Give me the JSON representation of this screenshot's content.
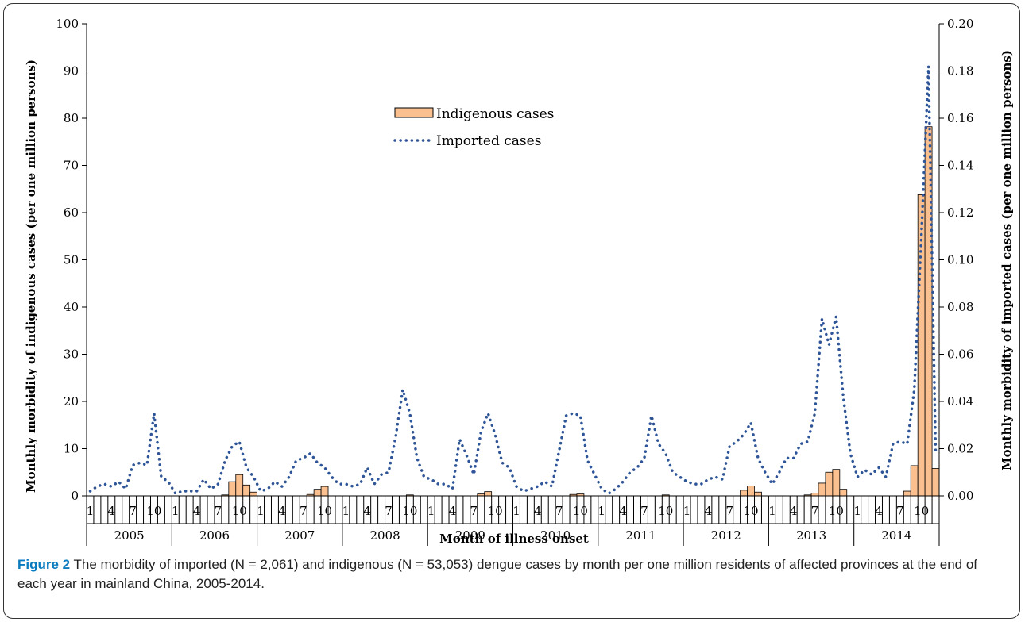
{
  "chart_data": {
    "type": "bar",
    "months_per_year": 12,
    "years": [
      "2005",
      "2006",
      "2007",
      "2008",
      "2009",
      "2010",
      "2011",
      "2012",
      "2013",
      "2014"
    ],
    "month_tick_labels": [
      "1",
      "4",
      "7",
      "10"
    ],
    "xlabel": "Month of illness onset",
    "ylabel_left": "Monthly morbidity of indigenous cases (per one million persons)",
    "ylabel_right": "Monthly morbidity of imported cases (per one million persons)",
    "ylim_left": [
      0,
      100
    ],
    "ylim_right": [
      0,
      0.2
    ],
    "yticks_left": [
      "0",
      "10",
      "20",
      "30",
      "40",
      "50",
      "60",
      "70",
      "80",
      "90",
      "100"
    ],
    "yticks_right": [
      "0.00",
      "0.02",
      "0.04",
      "0.06",
      "0.08",
      "0.10",
      "0.12",
      "0.14",
      "0.16",
      "0.18",
      "0.20"
    ],
    "legend_position": "top-center",
    "grid": false,
    "series": [
      {
        "name": "Indigenous cases",
        "type": "bar",
        "axis": "left",
        "color": "#fac090",
        "stroke": "#000000",
        "values": [
          0,
          0,
          0,
          0,
          0,
          0,
          0,
          0,
          0,
          0,
          0,
          0,
          0,
          0,
          0,
          0,
          0,
          0,
          0,
          0.2,
          3,
          4.5,
          2.3,
          0.8,
          0,
          0,
          0,
          0,
          0,
          0,
          0,
          0.3,
          1.4,
          2.0,
          0,
          0,
          0,
          0,
          0,
          0,
          0,
          0,
          0,
          0,
          0,
          0.2,
          0,
          0,
          0,
          0,
          0,
          0,
          0,
          0,
          0,
          0.4,
          0.9,
          0,
          0,
          0,
          0,
          0,
          0,
          0,
          0,
          0,
          0,
          0,
          0.3,
          0.4,
          0,
          0,
          0,
          0,
          0,
          0,
          0,
          0,
          0,
          0,
          0,
          0.2,
          0,
          0,
          0,
          0,
          0,
          0,
          0,
          0,
          0,
          0,
          1.2,
          2.1,
          0.8,
          0,
          0,
          0,
          0,
          0,
          0,
          0.2,
          0.6,
          2.7,
          5.0,
          5.6,
          1.4,
          0,
          0,
          0,
          0,
          0,
          0,
          0,
          0,
          1.0,
          6.4,
          63.8,
          78.2,
          5.8
        ]
      },
      {
        "name": "Imported cases",
        "type": "line",
        "style": "dotted",
        "axis": "right",
        "color": "#2e5597",
        "values": [
          0.002,
          0.004,
          0.005,
          0.004,
          0.006,
          0.003,
          0.013,
          0.014,
          0.013,
          0.035,
          0.008,
          0.006,
          0.001,
          0.002,
          0.002,
          0.002,
          0.007,
          0.003,
          0.005,
          0.015,
          0.021,
          0.023,
          0.012,
          0.008,
          0.002,
          0.003,
          0.006,
          0.004,
          0.008,
          0.015,
          0.016,
          0.018,
          0.014,
          0.012,
          0.008,
          0.005,
          0.005,
          0.004,
          0.005,
          0.012,
          0.005,
          0.009,
          0.01,
          0.025,
          0.045,
          0.035,
          0.016,
          0.008,
          0.007,
          0.005,
          0.005,
          0.003,
          0.024,
          0.017,
          0.009,
          0.027,
          0.035,
          0.026,
          0.014,
          0.012,
          0.004,
          0.002,
          0.003,
          0.004,
          0.006,
          0.004,
          0.019,
          0.034,
          0.035,
          0.034,
          0.015,
          0.009,
          0.003,
          0.001,
          0.003,
          0.006,
          0.01,
          0.012,
          0.016,
          0.034,
          0.022,
          0.018,
          0.01,
          0.008,
          0.006,
          0.005,
          0.005,
          0.007,
          0.008,
          0.007,
          0.021,
          0.023,
          0.026,
          0.031,
          0.016,
          0.01,
          0.005,
          0.01,
          0.016,
          0.016,
          0.022,
          0.023,
          0.035,
          0.075,
          0.064,
          0.076,
          0.042,
          0.018,
          0.008,
          0.011,
          0.009,
          0.012,
          0.008,
          0.022,
          0.023,
          0.022,
          0.045,
          0.11,
          0.182,
          0.019
        ]
      }
    ]
  },
  "caption": {
    "label": "Figure 2",
    "text": " The morbidity of imported (N = 2,061) and indigenous (N = 53,053) dengue cases by month per one million residents of affected provinces at the end of each year in mainland China, 2005-2014."
  }
}
